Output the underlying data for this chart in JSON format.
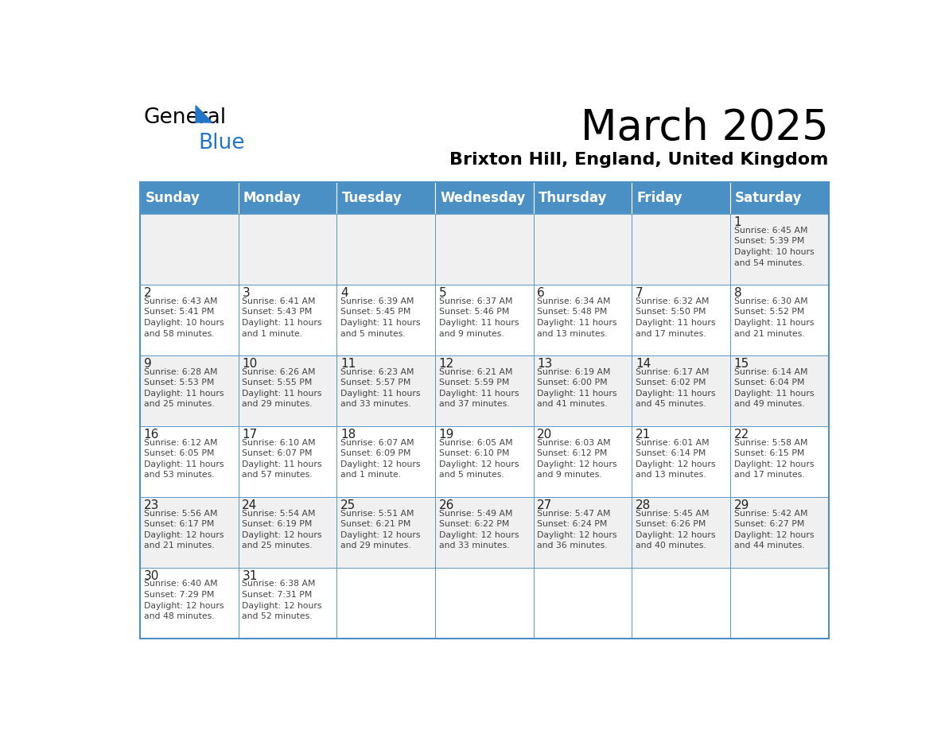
{
  "title": "March 2025",
  "subtitle": "Brixton Hill, England, United Kingdom",
  "days_of_week": [
    "Sunday",
    "Monday",
    "Tuesday",
    "Wednesday",
    "Thursday",
    "Friday",
    "Saturday"
  ],
  "header_bg": "#4A90C4",
  "header_text_color": "#FFFFFF",
  "cell_bg_light": "#F0F0F0",
  "cell_bg_white": "#FFFFFF",
  "border_color": "#4A90C4",
  "text_color": "#444444",
  "day_num_color": "#222222",
  "calendar": [
    [
      null,
      null,
      null,
      null,
      null,
      null,
      1
    ],
    [
      2,
      3,
      4,
      5,
      6,
      7,
      8
    ],
    [
      9,
      10,
      11,
      12,
      13,
      14,
      15
    ],
    [
      16,
      17,
      18,
      19,
      20,
      21,
      22
    ],
    [
      23,
      24,
      25,
      26,
      27,
      28,
      29
    ],
    [
      30,
      31,
      null,
      null,
      null,
      null,
      null
    ]
  ],
  "cell_data": {
    "1": {
      "sunrise": "6:45 AM",
      "sunset": "5:39 PM",
      "daylight": "10 hours and 54 minutes."
    },
    "2": {
      "sunrise": "6:43 AM",
      "sunset": "5:41 PM",
      "daylight": "10 hours and 58 minutes."
    },
    "3": {
      "sunrise": "6:41 AM",
      "sunset": "5:43 PM",
      "daylight": "11 hours and 1 minute."
    },
    "4": {
      "sunrise": "6:39 AM",
      "sunset": "5:45 PM",
      "daylight": "11 hours and 5 minutes."
    },
    "5": {
      "sunrise": "6:37 AM",
      "sunset": "5:46 PM",
      "daylight": "11 hours and 9 minutes."
    },
    "6": {
      "sunrise": "6:34 AM",
      "sunset": "5:48 PM",
      "daylight": "11 hours and 13 minutes."
    },
    "7": {
      "sunrise": "6:32 AM",
      "sunset": "5:50 PM",
      "daylight": "11 hours and 17 minutes."
    },
    "8": {
      "sunrise": "6:30 AM",
      "sunset": "5:52 PM",
      "daylight": "11 hours and 21 minutes."
    },
    "9": {
      "sunrise": "6:28 AM",
      "sunset": "5:53 PM",
      "daylight": "11 hours and 25 minutes."
    },
    "10": {
      "sunrise": "6:26 AM",
      "sunset": "5:55 PM",
      "daylight": "11 hours and 29 minutes."
    },
    "11": {
      "sunrise": "6:23 AM",
      "sunset": "5:57 PM",
      "daylight": "11 hours and 33 minutes."
    },
    "12": {
      "sunrise": "6:21 AM",
      "sunset": "5:59 PM",
      "daylight": "11 hours and 37 minutes."
    },
    "13": {
      "sunrise": "6:19 AM",
      "sunset": "6:00 PM",
      "daylight": "11 hours and 41 minutes."
    },
    "14": {
      "sunrise": "6:17 AM",
      "sunset": "6:02 PM",
      "daylight": "11 hours and 45 minutes."
    },
    "15": {
      "sunrise": "6:14 AM",
      "sunset": "6:04 PM",
      "daylight": "11 hours and 49 minutes."
    },
    "16": {
      "sunrise": "6:12 AM",
      "sunset": "6:05 PM",
      "daylight": "11 hours and 53 minutes."
    },
    "17": {
      "sunrise": "6:10 AM",
      "sunset": "6:07 PM",
      "daylight": "11 hours and 57 minutes."
    },
    "18": {
      "sunrise": "6:07 AM",
      "sunset": "6:09 PM",
      "daylight": "12 hours and 1 minute."
    },
    "19": {
      "sunrise": "6:05 AM",
      "sunset": "6:10 PM",
      "daylight": "12 hours and 5 minutes."
    },
    "20": {
      "sunrise": "6:03 AM",
      "sunset": "6:12 PM",
      "daylight": "12 hours and 9 minutes."
    },
    "21": {
      "sunrise": "6:01 AM",
      "sunset": "6:14 PM",
      "daylight": "12 hours and 13 minutes."
    },
    "22": {
      "sunrise": "5:58 AM",
      "sunset": "6:15 PM",
      "daylight": "12 hours and 17 minutes."
    },
    "23": {
      "sunrise": "5:56 AM",
      "sunset": "6:17 PM",
      "daylight": "12 hours and 21 minutes."
    },
    "24": {
      "sunrise": "5:54 AM",
      "sunset": "6:19 PM",
      "daylight": "12 hours and 25 minutes."
    },
    "25": {
      "sunrise": "5:51 AM",
      "sunset": "6:21 PM",
      "daylight": "12 hours and 29 minutes."
    },
    "26": {
      "sunrise": "5:49 AM",
      "sunset": "6:22 PM",
      "daylight": "12 hours and 33 minutes."
    },
    "27": {
      "sunrise": "5:47 AM",
      "sunset": "6:24 PM",
      "daylight": "12 hours and 36 minutes."
    },
    "28": {
      "sunrise": "5:45 AM",
      "sunset": "6:26 PM",
      "daylight": "12 hours and 40 minutes."
    },
    "29": {
      "sunrise": "5:42 AM",
      "sunset": "6:27 PM",
      "daylight": "12 hours and 44 minutes."
    },
    "30": {
      "sunrise": "6:40 AM",
      "sunset": "7:29 PM",
      "daylight": "12 hours and 48 minutes."
    },
    "31": {
      "sunrise": "6:38 AM",
      "sunset": "7:31 PM",
      "daylight": "12 hours and 52 minutes."
    }
  }
}
